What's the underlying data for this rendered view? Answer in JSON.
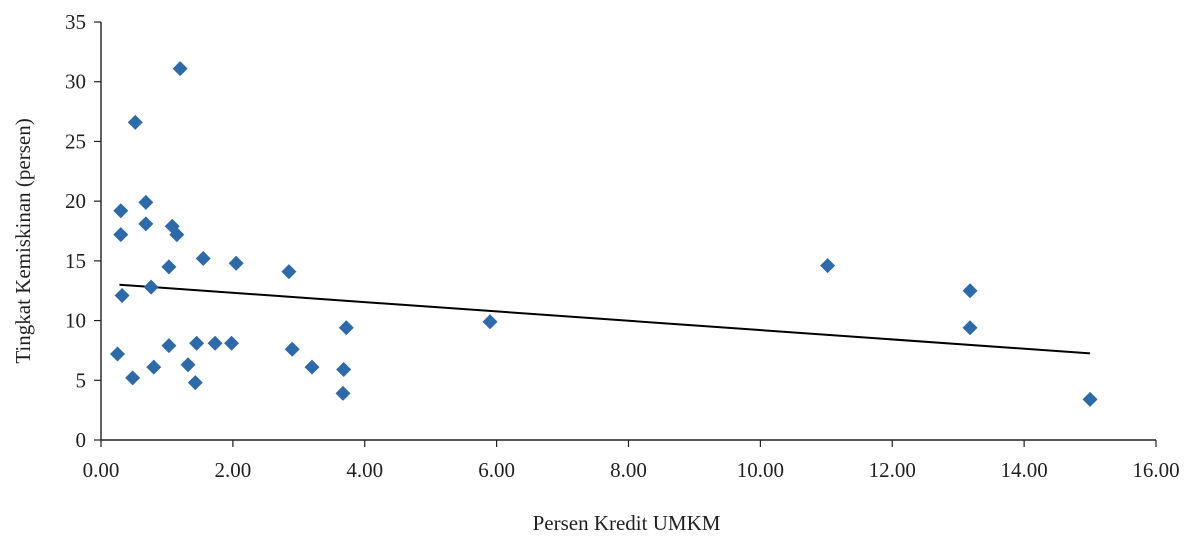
{
  "chart_data": {
    "type": "scatter",
    "xlabel": "Persen Kredit UMKM",
    "ylabel": "Tingkat Kemiskinan (persen)",
    "xlim": [
      0,
      16
    ],
    "ylim": [
      0,
      35
    ],
    "x_ticks": [
      0,
      2,
      4,
      6,
      8,
      10,
      12,
      14,
      16
    ],
    "x_tick_labels": [
      "0.00",
      "2.00",
      "4.00",
      "6.00",
      "8.00",
      "10.00",
      "12.00",
      "14.00",
      "16.00"
    ],
    "y_ticks": [
      0,
      5,
      10,
      15,
      20,
      25,
      30,
      35
    ],
    "y_tick_labels": [
      "0",
      "5",
      "10",
      "15",
      "20",
      "25",
      "30",
      "35"
    ],
    "grid": false,
    "legend": "none",
    "marker": "diamond",
    "marker_color": "#2e6aa8",
    "trendline_color": "#000000",
    "trendline": {
      "x": [
        0.28,
        15.0
      ],
      "y": [
        13.0,
        7.25
      ]
    },
    "points": [
      {
        "x": 0.25,
        "y": 7.2
      },
      {
        "x": 0.3,
        "y": 19.2
      },
      {
        "x": 0.3,
        "y": 17.2
      },
      {
        "x": 0.32,
        "y": 12.1
      },
      {
        "x": 0.48,
        "y": 5.2
      },
      {
        "x": 0.52,
        "y": 26.6
      },
      {
        "x": 0.68,
        "y": 19.9
      },
      {
        "x": 0.68,
        "y": 18.1
      },
      {
        "x": 0.76,
        "y": 12.8
      },
      {
        "x": 0.8,
        "y": 6.1
      },
      {
        "x": 1.03,
        "y": 14.5
      },
      {
        "x": 1.03,
        "y": 7.9
      },
      {
        "x": 1.08,
        "y": 17.9
      },
      {
        "x": 1.15,
        "y": 17.2
      },
      {
        "x": 1.2,
        "y": 31.1
      },
      {
        "x": 1.32,
        "y": 6.3
      },
      {
        "x": 1.43,
        "y": 4.8
      },
      {
        "x": 1.45,
        "y": 8.1
      },
      {
        "x": 1.55,
        "y": 15.2
      },
      {
        "x": 1.73,
        "y": 8.1
      },
      {
        "x": 1.98,
        "y": 8.1
      },
      {
        "x": 2.05,
        "y": 14.8
      },
      {
        "x": 2.85,
        "y": 14.1
      },
      {
        "x": 2.9,
        "y": 7.6
      },
      {
        "x": 3.2,
        "y": 6.1
      },
      {
        "x": 3.67,
        "y": 3.9
      },
      {
        "x": 3.68,
        "y": 5.9
      },
      {
        "x": 3.72,
        "y": 9.4
      },
      {
        "x": 5.9,
        "y": 9.9
      },
      {
        "x": 11.02,
        "y": 14.6
      },
      {
        "x": 13.18,
        "y": 12.5
      },
      {
        "x": 13.18,
        "y": 9.4
      },
      {
        "x": 15.0,
        "y": 3.4
      }
    ]
  }
}
